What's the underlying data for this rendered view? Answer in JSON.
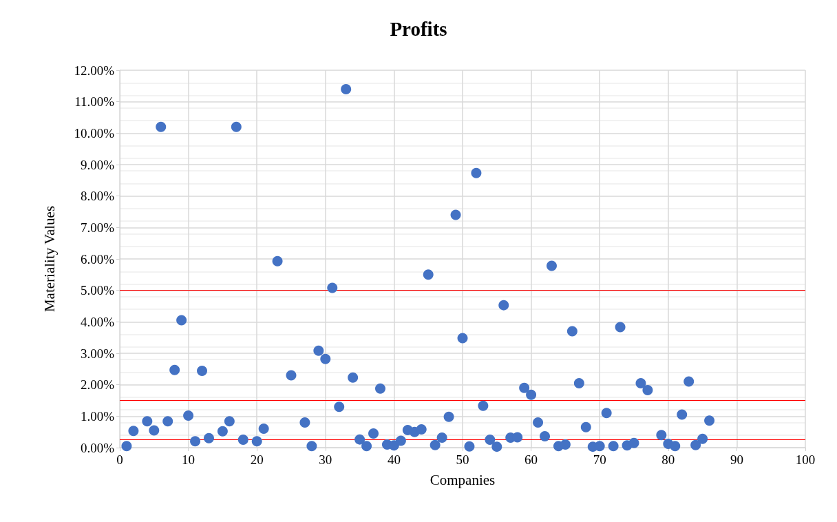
{
  "chart_data": {
    "type": "scatter",
    "title": "Profits",
    "xlabel": "Companies",
    "ylabel": "Materiality Values",
    "series": [
      {
        "color": "#4472c4",
        "x": [
          1,
          2,
          4,
          5,
          6,
          7,
          8,
          9,
          10,
          11,
          12,
          13,
          15,
          16,
          17,
          18,
          20,
          21,
          23,
          25,
          27,
          28,
          29,
          30,
          31,
          32,
          33,
          34,
          35,
          36,
          37,
          38,
          39,
          40,
          41,
          42,
          43,
          44,
          45,
          46,
          47,
          48,
          49,
          50,
          51,
          52,
          53,
          54,
          55,
          56,
          57,
          58,
          59,
          60,
          61,
          62,
          63,
          64,
          65,
          66,
          67,
          68,
          69,
          70,
          71,
          72,
          73,
          74,
          75,
          76,
          77,
          79,
          80,
          81,
          82,
          83,
          84,
          85,
          86
        ],
        "values": [
          0.05,
          0.53,
          0.84,
          0.55,
          10.2,
          0.84,
          2.47,
          4.05,
          1.02,
          0.2,
          2.44,
          0.3,
          0.52,
          0.84,
          10.2,
          0.25,
          0.2,
          0.6,
          5.93,
          2.3,
          0.8,
          0.05,
          3.08,
          2.82,
          5.08,
          1.3,
          11.4,
          2.23,
          0.26,
          0.05,
          0.45,
          1.88,
          0.1,
          0.07,
          0.22,
          0.56,
          0.5,
          0.58,
          5.5,
          0.08,
          0.32,
          0.98,
          7.4,
          3.48,
          0.04,
          8.73,
          1.33,
          0.25,
          0.03,
          4.53,
          0.32,
          0.33,
          1.9,
          1.68,
          0.8,
          0.36,
          5.78,
          0.05,
          0.1,
          3.7,
          2.05,
          0.65,
          0.03,
          0.05,
          1.1,
          0.05,
          3.83,
          0.07,
          0.15,
          2.05,
          1.83,
          0.4,
          0.12,
          0.05,
          1.05,
          2.1,
          0.08,
          0.28,
          0.86
        ]
      }
    ],
    "xlim": [
      0,
      100
    ],
    "xticks": [
      0,
      10,
      20,
      30,
      40,
      50,
      60,
      70,
      80,
      90,
      100
    ],
    "ylim": [
      0,
      12
    ],
    "yticks": [
      {
        "value": 0,
        "label": "0.00%"
      },
      {
        "value": 1,
        "label": "1.00%"
      },
      {
        "value": 2,
        "label": "2.00%"
      },
      {
        "value": 3,
        "label": "3.00%"
      },
      {
        "value": 4,
        "label": "4.00%"
      },
      {
        "value": 5,
        "label": "5.00%"
      },
      {
        "value": 6,
        "label": "6.00%"
      },
      {
        "value": 7,
        "label": "7.00%"
      },
      {
        "value": 8,
        "label": "8.00%"
      },
      {
        "value": 9,
        "label": "9.00%"
      },
      {
        "value": 10,
        "label": "10.00%"
      },
      {
        "value": 11,
        "label": "11.00%"
      },
      {
        "value": 12,
        "label": "12.00%"
      }
    ],
    "ref_lines": [
      {
        "axis": "y",
        "value": 5,
        "color": "#ff0000"
      },
      {
        "axis": "y",
        "value": 1.5,
        "color": "#ff0000"
      },
      {
        "axis": "y",
        "value": 0.25,
        "color": "#ff0000"
      }
    ],
    "grid": true,
    "marker": "circle"
  }
}
